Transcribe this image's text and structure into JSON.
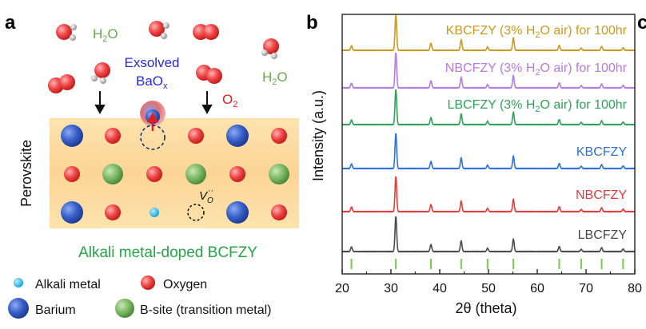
{
  "panel_a": {
    "label": "a",
    "h2o_labels": [
      {
        "main": "H",
        "sub": "2",
        "tail": "O"
      },
      {
        "main": "H",
        "sub": "2",
        "tail": "O"
      }
    ],
    "exsolved": {
      "line1": "Exsolved",
      "line2_main": "BaO",
      "line2_sub": "x"
    },
    "o2": {
      "main": "O",
      "sub": "2"
    },
    "vacancy": {
      "main": "V",
      "sub": "O",
      "sup": "··"
    },
    "perovskite_label": "Perovskite",
    "caption": "Alkali metal-doped BCFZY",
    "legend": [
      {
        "label": "Alkali metal",
        "icon": "alkali-metal-icon"
      },
      {
        "label": "Oxygen",
        "icon": "oxygen-icon"
      },
      {
        "label": "Barium",
        "icon": "barium-icon"
      },
      {
        "label": "B-site (transition metal)",
        "icon": "b-site-icon"
      }
    ],
    "colors": {
      "alkali": "#22b8e8",
      "oxygen": "#e83a3a",
      "barium": "#2f58c8",
      "bsite": "#6fb25a",
      "perovskite_bg": "#fbdca0",
      "h2o_text": "#6aa84f",
      "exsolved_text": "#2a2ad8",
      "o2_text": "#e02020",
      "caption_text": "#27a348"
    }
  },
  "panel_b": {
    "label": "b",
    "clipped_label": "c"
  },
  "chart_data": {
    "type": "line",
    "xlabel": "2θ (theta)",
    "ylabel": "Intensity (a.u.)",
    "xlim": [
      20,
      80
    ],
    "xticks": [
      20,
      30,
      40,
      50,
      60,
      70,
      80
    ],
    "peaks": [
      {
        "x": 21.9,
        "h": 0.13
      },
      {
        "x": 31.0,
        "h": 1.0
      },
      {
        "x": 38.2,
        "h": 0.2
      },
      {
        "x": 44.4,
        "h": 0.3
      },
      {
        "x": 49.8,
        "h": 0.09
      },
      {
        "x": 55.1,
        "h": 0.35
      },
      {
        "x": 64.5,
        "h": 0.14
      },
      {
        "x": 69.0,
        "h": 0.06
      },
      {
        "x": 73.2,
        "h": 0.11
      },
      {
        "x": 77.6,
        "h": 0.07
      }
    ],
    "series": [
      {
        "name": "LBCFZY",
        "color": "#4a4a4a",
        "label_parts": {
          "text": "LBCFZY"
        }
      },
      {
        "name": "NBCFZY",
        "color": "#e23b3b",
        "label_parts": {
          "text": "NBCFZY"
        }
      },
      {
        "name": "KBCFZY",
        "color": "#2f6fdc",
        "label_parts": {
          "text": "KBCFZY"
        }
      },
      {
        "name": "LBCFZY (3% H2O air) for 100hr",
        "color": "#2fa05a",
        "label_parts": {
          "a": "LBCFZY (3% H",
          "sub": "2",
          "b": "O air) for 100hr"
        }
      },
      {
        "name": "NBCFZY (3% H2O air) for 100hr",
        "color": "#b57ae0",
        "label_parts": {
          "a": "NBCFZY (3% H",
          "sub": "2",
          "b": "O air) for 100hr"
        }
      },
      {
        "name": "KBCFZY (3% H2O air) for 100hr",
        "color": "#c99a1c",
        "label_parts": {
          "a": "KBCFZY (3% H",
          "sub": "2",
          "b": "O air) for 100hr"
        }
      }
    ],
    "reference_ticks": {
      "color": "#7ac94a",
      "x": [
        21.9,
        31.0,
        38.2,
        44.4,
        49.8,
        55.1,
        64.5,
        69.0,
        73.2,
        77.6
      ]
    }
  }
}
